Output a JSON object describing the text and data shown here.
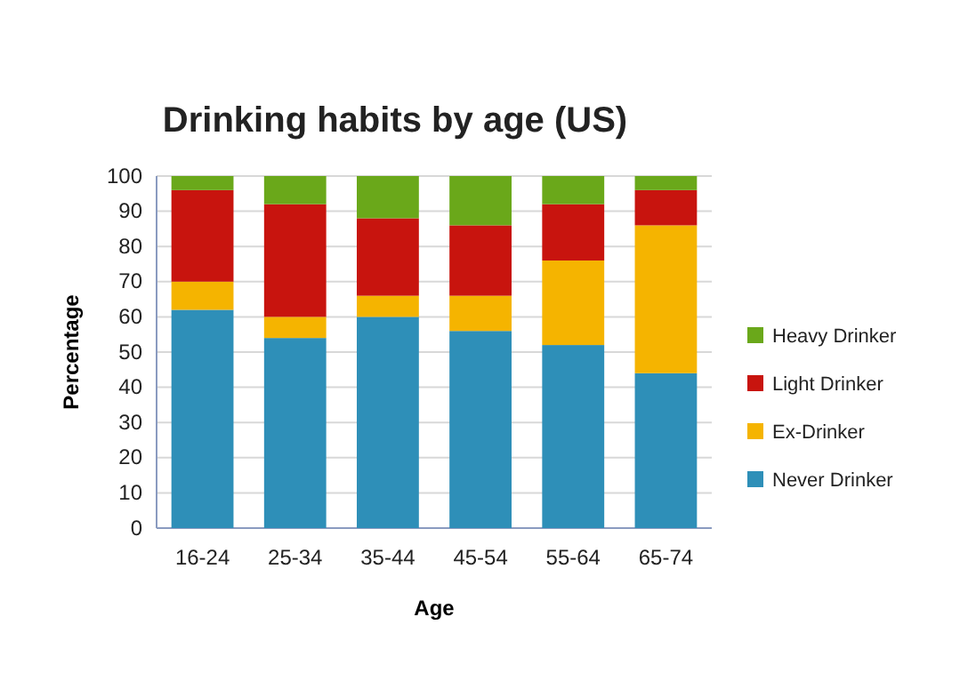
{
  "chart_data": {
    "type": "bar",
    "title": "Drinking habits by age (US)",
    "xlabel": "Age",
    "ylabel": "Percentage",
    "categories": [
      "16-24",
      "25-34",
      "35-44",
      "45-54",
      "55-64",
      "65-74"
    ],
    "stacked": true,
    "legend": "right",
    "grid": "y",
    "ylim": [
      0,
      100
    ],
    "yticks": [
      0,
      10,
      20,
      30,
      40,
      50,
      60,
      70,
      80,
      90,
      100
    ],
    "series": [
      {
        "name": "Never Drinker",
        "color": "#2e8fb8",
        "values": [
          62,
          54,
          60,
          56,
          52,
          44
        ]
      },
      {
        "name": "Ex-Drinker",
        "color": "#f5b400",
        "values": [
          8,
          6,
          6,
          10,
          24,
          42
        ]
      },
      {
        "name": "Light Drinker",
        "color": "#c8140e",
        "values": [
          26,
          32,
          22,
          20,
          16,
          10
        ]
      },
      {
        "name": "Heavy Drinker",
        "color": "#6aa81a",
        "values": [
          4,
          8,
          12,
          14,
          8,
          4
        ]
      }
    ]
  }
}
